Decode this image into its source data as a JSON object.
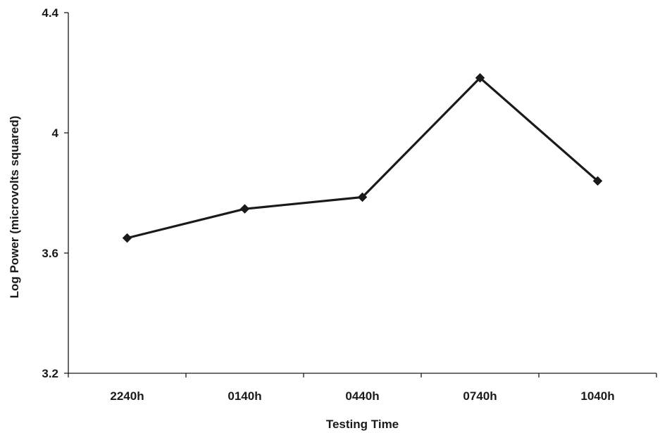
{
  "chart_data": {
    "type": "line",
    "title": "",
    "xlabel": "Testing Time",
    "ylabel": "Log Power (microvolts squared)",
    "categories": [
      "2240h",
      "0140h",
      "0440h",
      "0740h",
      "1040h"
    ],
    "series": [
      {
        "values": [
          3.65,
          3.747,
          3.786,
          4.183,
          3.84
        ],
        "color": "#1a1a1a",
        "marker": "diamond"
      }
    ],
    "ylim": [
      3.2,
      4.4
    ],
    "yticks": [
      3.2,
      3.6,
      4.0,
      4.4
    ],
    "ytick_labels": [
      "3.2",
      "3.6",
      "4",
      "4.4"
    ],
    "grid": false,
    "legend": "none"
  }
}
